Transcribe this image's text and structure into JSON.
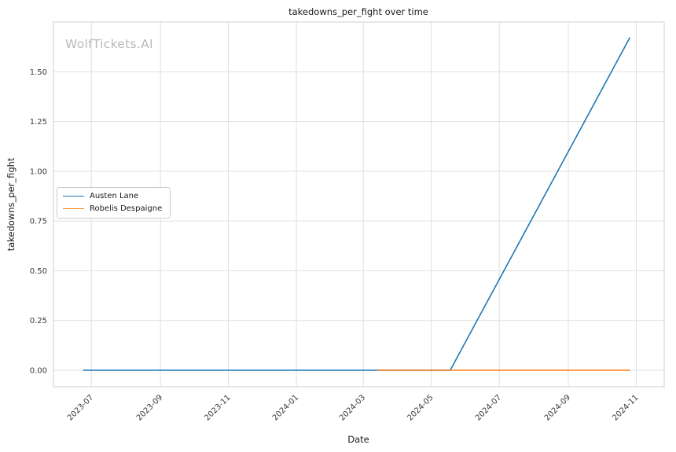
{
  "chart_data": {
    "type": "line",
    "title": "takedowns_per_fight over time",
    "xlabel": "Date",
    "ylabel": "takedowns_per_fight",
    "watermark": "WolfTickets.AI",
    "grid": true,
    "legend_position": "center left",
    "background_color": "#ffffff",
    "grid_color": "#e0e0e0",
    "spine_color": "#cfcfcf",
    "tick_label_color": "#3a3a3a",
    "x_ticks": [
      "2023-07-01",
      "2023-09-01",
      "2023-11-01",
      "2024-01-01",
      "2024-03-01",
      "2024-05-01",
      "2024-07-01",
      "2024-09-01",
      "2024-11-01"
    ],
    "x_tick_labels": [
      "2023-07",
      "2023-09",
      "2023-11",
      "2024-01",
      "2024-03",
      "2024-05",
      "2024-07",
      "2024-09",
      "2024-11"
    ],
    "y_ticks": [
      0.0,
      0.25,
      0.5,
      0.75,
      1.0,
      1.25,
      1.5
    ],
    "y_tick_labels": [
      "0.00",
      "0.25",
      "0.50",
      "0.75",
      "1.00",
      "1.25",
      "1.50"
    ],
    "xlim": [
      "2023-05-28",
      "2024-11-26"
    ],
    "ylim": [
      -0.083,
      1.75
    ],
    "series": [
      {
        "name": "Austen Lane",
        "color": "#1f77b4",
        "points": [
          [
            "2023-06-24",
            0.0
          ],
          [
            "2024-05-18",
            0.0
          ],
          [
            "2024-10-26",
            1.67
          ]
        ]
      },
      {
        "name": "Robelis Despaigne",
        "color": "#ff7f0e",
        "points": [
          [
            "2024-03-14",
            0.0
          ],
          [
            "2024-10-26",
            0.0
          ]
        ]
      }
    ]
  }
}
